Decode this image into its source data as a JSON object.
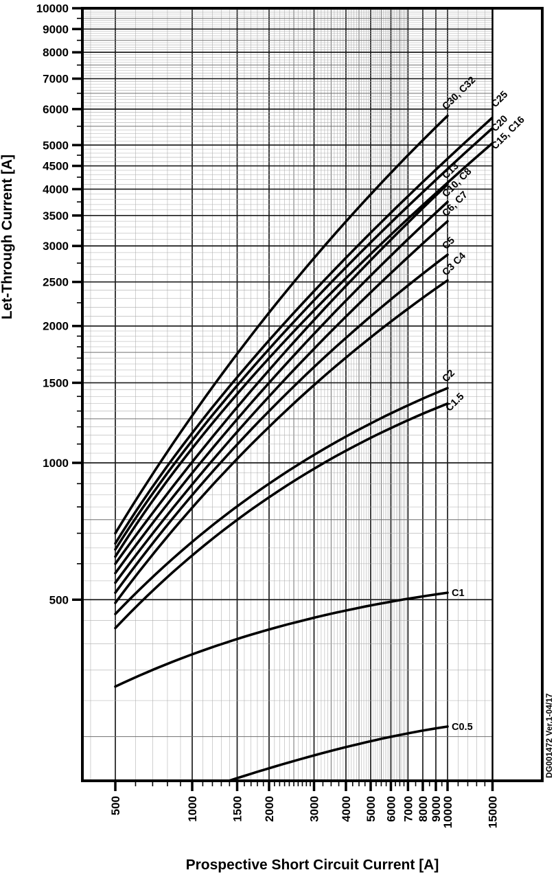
{
  "figure": {
    "watermark": "DG001472  Ver.1-04/17",
    "background": "#ffffff",
    "grid_minor_color": "#ababab",
    "grid_mid_color": "#6f6f6f",
    "grid_major_color": "#1c1c1c",
    "curve_color": "#000000"
  },
  "chart_data": {
    "type": "line",
    "title": "",
    "xlabel": "Prospective Short Circuit Current [A]",
    "ylabel": "Let-Through Current [A]",
    "x_scale": "log",
    "y_scale": "log",
    "xlim": [
      370,
      15000
    ],
    "ylim": [
      200,
      10000
    ],
    "grid": true,
    "x_ticks": [
      500,
      1000,
      1500,
      2000,
      3000,
      4000,
      5000,
      6000,
      7000,
      8000,
      9000,
      10000,
      15000
    ],
    "y_ticks": [
      500,
      1000,
      1500,
      2000,
      2500,
      3000,
      3500,
      4000,
      4500,
      5000,
      6000,
      7000,
      8000,
      9000,
      10000
    ],
    "x_minor_ticks": [
      600,
      700,
      800,
      900,
      1100,
      1200,
      1300,
      1400,
      1600,
      1700,
      1800,
      1900,
      2100,
      2200,
      2300,
      2400,
      2500,
      2600,
      2700,
      2800,
      2900,
      3250,
      3500,
      3750,
      4250,
      4500,
      4750,
      5250,
      5500,
      5750,
      6250,
      6500,
      6750,
      7500,
      8500,
      9500,
      11000,
      12000,
      13000,
      14000
    ],
    "y_minor_ticks": [
      600,
      700,
      800,
      900,
      1100,
      1200,
      1300,
      1400,
      1600,
      1700,
      1800,
      1900,
      2250,
      2750,
      3250,
      3750,
      4250,
      4750,
      5500,
      6500,
      7500,
      8500,
      9500
    ],
    "x_grid_ranges": [
      [
        400,
        7000,
        100
      ],
      [
        8000,
        15000,
        1000
      ]
    ],
    "y_grid_ranges": [
      [
        250,
        2000,
        50
      ],
      [
        2100,
        10000,
        100
      ]
    ],
    "series": [
      {
        "name": "C30, C32",
        "points": [
          [
            500,
            700
          ],
          [
            2000,
            2140
          ],
          [
            10000,
            5800
          ]
        ],
        "label": {
          "text": "C30, C32",
          "rot": -45,
          "dx": -2,
          "dy": -8
        }
      },
      {
        "name": "C25",
        "points": [
          [
            500,
            665
          ],
          [
            2000,
            1860
          ],
          [
            15000,
            5750
          ]
        ],
        "label": {
          "text": "C25",
          "rot": -45,
          "dx": 4,
          "dy": -14
        }
      },
      {
        "name": "C20",
        "points": [
          [
            500,
            645
          ],
          [
            2000,
            1780
          ],
          [
            15000,
            5450
          ]
        ],
        "label": {
          "text": "C20",
          "rot": -45,
          "dx": 4,
          "dy": 6
        }
      },
      {
        "name": "C15, C16",
        "points": [
          [
            500,
            622
          ],
          [
            2000,
            1700
          ],
          [
            15000,
            5050
          ]
        ],
        "label": {
          "text": "C15, C16",
          "rot": -45,
          "dx": 4,
          "dy": 10
        }
      },
      {
        "name": "C13",
        "points": [
          [
            500,
            600
          ],
          [
            2000,
            1600
          ],
          [
            10000,
            4100
          ]
        ],
        "label": {
          "text": "C13",
          "rot": -45,
          "dx": -2,
          "dy": -7
        }
      },
      {
        "name": "C10, C8",
        "points": [
          [
            500,
            572
          ],
          [
            2000,
            1500
          ],
          [
            10000,
            3750
          ]
        ],
        "label": {
          "text": "C10, C8",
          "rot": -45,
          "dx": -2,
          "dy": -6
        }
      },
      {
        "name": "C6, C7",
        "points": [
          [
            500,
            545
          ],
          [
            2000,
            1400
          ],
          [
            10000,
            3400
          ]
        ],
        "label": {
          "text": "C6, C7",
          "rot": -45,
          "dx": -2,
          "dy": -6
        }
      },
      {
        "name": "C5",
        "points": [
          [
            500,
            518
          ],
          [
            2000,
            1300
          ],
          [
            10000,
            2870
          ]
        ],
        "label": {
          "text": "C5",
          "rot": -45,
          "dx": -2,
          "dy": -7
        }
      },
      {
        "name": "C3 C4",
        "points": [
          [
            500,
            492
          ],
          [
            2000,
            1200
          ],
          [
            10000,
            2520
          ]
        ],
        "label": {
          "text": "C3 C4",
          "rot": -45,
          "dx": -2,
          "dy": -6
        }
      },
      {
        "name": "C2",
        "points": [
          [
            500,
            465
          ],
          [
            2000,
            900
          ],
          [
            10000,
            1460
          ]
        ],
        "label": {
          "text": "C2",
          "rot": -45,
          "dx": -2,
          "dy": -8
        }
      },
      {
        "name": "C1.5",
        "points": [
          [
            500,
            433
          ],
          [
            2000,
            840
          ],
          [
            10000,
            1350
          ]
        ],
        "label": {
          "text": "C1.5",
          "rot": -45,
          "dx": 3,
          "dy": 12
        }
      },
      {
        "name": "C1",
        "points": [
          [
            500,
            322
          ],
          [
            2000,
            430
          ],
          [
            10000,
            518
          ]
        ],
        "label": {
          "text": "C1",
          "rot": 0,
          "dx": 6,
          "dy": 5
        }
      },
      {
        "name": "C0.5",
        "points": [
          [
            1400,
            200
          ],
          [
            4000,
            237
          ],
          [
            10000,
            263
          ]
        ],
        "label": {
          "text": "C0.5",
          "rot": 0,
          "dx": 6,
          "dy": 5
        }
      }
    ]
  }
}
